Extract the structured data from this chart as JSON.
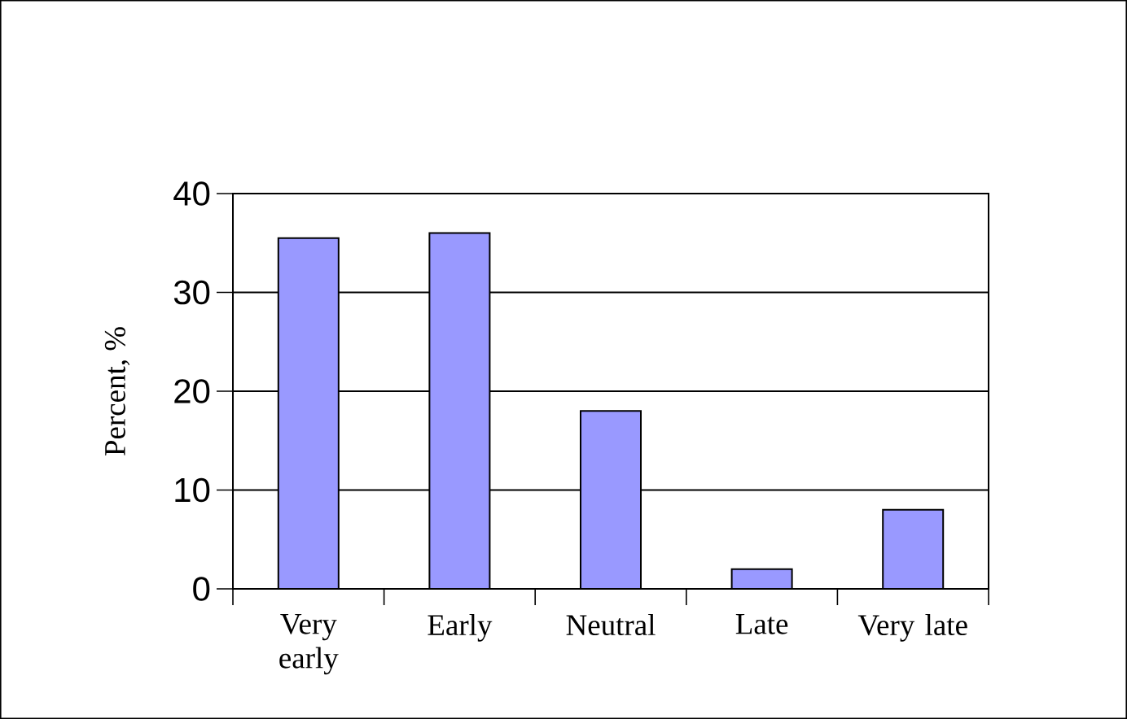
{
  "chart_data": {
    "type": "bar",
    "categories": [
      "Very early",
      "Early",
      "Neutral",
      "Late",
      "Very late"
    ],
    "values": [
      35.5,
      36,
      18,
      2,
      8
    ],
    "color": "#9999ff",
    "ylabel": "Percent, %",
    "ylim": [
      0,
      40
    ],
    "yticks": [
      0,
      10,
      20,
      30,
      40
    ],
    "grid": "y"
  }
}
